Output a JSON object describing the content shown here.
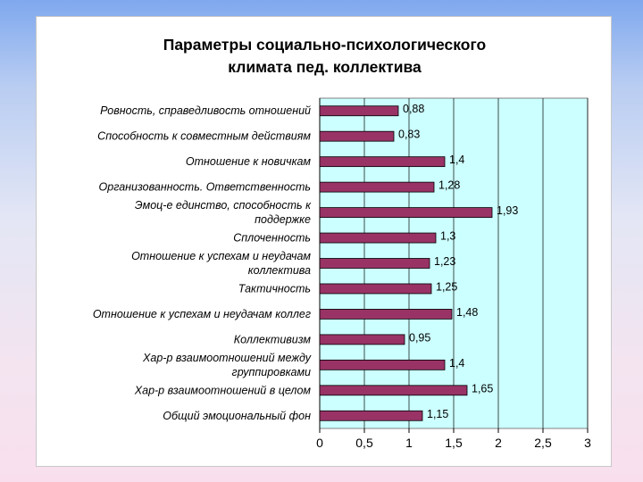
{
  "colors": {
    "plot_background": "#ccffff",
    "bar_fill": "#993366",
    "gridline": "#000000"
  },
  "chart_data": {
    "type": "bar",
    "orientation": "horizontal",
    "title_line1": "Параметры социально-психологического",
    "title_line2": "климата пед. коллектива",
    "categories": [
      [
        "Ровность, справедливость отношений"
      ],
      [
        "Способность к совместным действиям"
      ],
      [
        "Отношение к новичкам"
      ],
      [
        "Организованность. Ответственность"
      ],
      [
        "Эмоц-е единство, способность к",
        "поддержке"
      ],
      [
        "Сплоченность"
      ],
      [
        "Отношение к успехам и неудачам",
        "коллектива"
      ],
      [
        "Тактичность"
      ],
      [
        "Отношение к успехам и неудачам коллег"
      ],
      [
        "Коллективизм"
      ],
      [
        "Хар-р взаимоотношений между",
        "группировками"
      ],
      [
        "Хар-р взаимоотношений в целом"
      ],
      [
        "Общий эмоциональный фон"
      ]
    ],
    "values": [
      0.88,
      0.83,
      1.4,
      1.28,
      1.93,
      1.3,
      1.23,
      1.25,
      1.48,
      0.95,
      1.4,
      1.65,
      1.15
    ],
    "value_labels": [
      "0,88",
      "0,83",
      "1,4",
      "1,28",
      "1,93",
      "1,3",
      "1,23",
      "1,25",
      "1,48",
      "0,95",
      "1,4",
      "1,65",
      "1,15"
    ],
    "xlim": [
      0,
      3
    ],
    "xticks": [
      0,
      0.5,
      1,
      1.5,
      2,
      2.5,
      3
    ],
    "xtick_labels": [
      "0",
      "0,5",
      "1",
      "1,5",
      "2",
      "2,5",
      "3"
    ],
    "grid": "vertical major gridlines",
    "legend": "none"
  }
}
